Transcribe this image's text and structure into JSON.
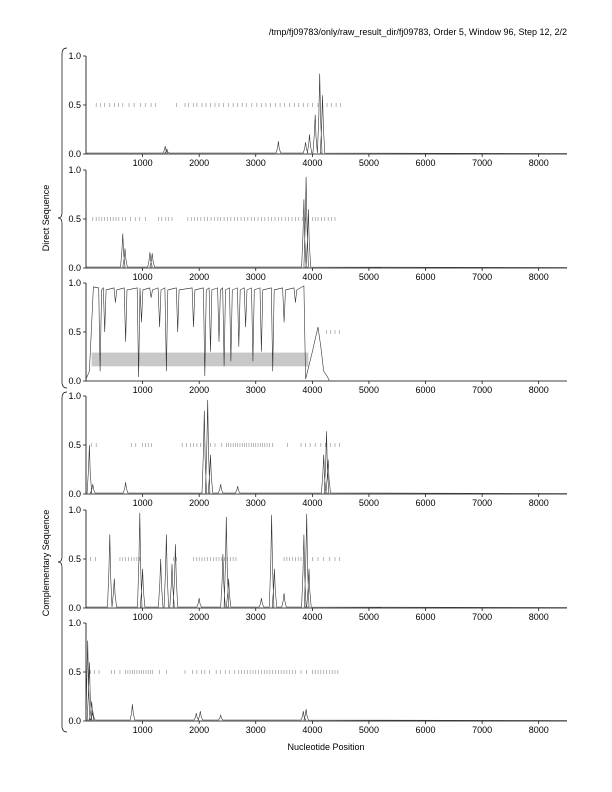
{
  "header": "/tmp/fj09783/only/raw_result_dir/fj09783, Order 5, Window 96, Step 12, 2/2",
  "groups": {
    "direct": "Direct Sequence",
    "complementary": "Complementary Sequence"
  },
  "chart_data": {
    "type": "line",
    "xlabel": "Nucleotide Position",
    "xlim": [
      0,
      8500
    ],
    "ylim": [
      0,
      1
    ],
    "xticks": [
      1000,
      2000,
      3000,
      4000,
      5000,
      6000,
      7000,
      8000
    ],
    "yticks": [
      "0.0",
      "0.5",
      "1.0"
    ],
    "panels": [
      {
        "group": "direct",
        "peaks": [
          [
            1400,
            0.08
          ],
          [
            1430,
            0.05
          ],
          [
            3400,
            0.13
          ],
          [
            3880,
            0.12
          ],
          [
            3950,
            0.2
          ],
          [
            4050,
            0.4
          ],
          [
            4130,
            0.82
          ],
          [
            4180,
            0.6
          ]
        ],
        "ticks": [
          180,
          260,
          330,
          420,
          500,
          570,
          650,
          760,
          850,
          960,
          1050,
          1150,
          1230,
          1600,
          1750,
          1810,
          1900,
          1960,
          2050,
          2120,
          2200,
          2280,
          2350,
          2430,
          2520,
          2600,
          2680,
          2760,
          2840,
          2930,
          3020,
          3100,
          3180,
          3260,
          3350,
          3430,
          3510,
          3600,
          3680,
          3760,
          3840,
          3920,
          4000,
          4100,
          4180,
          4260,
          4340,
          4420,
          4500
        ]
      },
      {
        "group": "direct",
        "peaks": [
          [
            650,
            0.35
          ],
          [
            690,
            0.2
          ],
          [
            1130,
            0.16
          ],
          [
            1170,
            0.15
          ],
          [
            3850,
            0.7
          ],
          [
            3890,
            0.93
          ],
          [
            3930,
            0.6
          ]
        ],
        "ticks": [
          120,
          180,
          230,
          280,
          330,
          380,
          430,
          480,
          530,
          580,
          650,
          700,
          790,
          870,
          950,
          1050,
          1280,
          1340,
          1410,
          1460,
          1520,
          1800,
          1860,
          1920,
          1970,
          2030,
          2090,
          2150,
          2210,
          2270,
          2330,
          2380,
          2440,
          2500,
          2560,
          2620,
          2680,
          2740,
          2800,
          2860,
          2920,
          2980,
          3040,
          3100,
          3160,
          3220,
          3280,
          3340,
          3400,
          3460,
          3520,
          3580,
          3640,
          3700,
          3760,
          3820,
          3880,
          4000,
          4050,
          4100,
          4160,
          4220,
          4280,
          4340,
          4400
        ]
      },
      {
        "group": "direct",
        "upper": [
          [
            130,
            0.96
          ],
          [
            3850,
            0.97
          ]
        ],
        "dips": [
          [
            250,
            0.1
          ],
          [
            330,
            0.5
          ],
          [
            520,
            0.8
          ],
          [
            700,
            0.4
          ],
          [
            930,
            0.04
          ],
          [
            980,
            0.6
          ],
          [
            1150,
            0.85
          ],
          [
            1300,
            0.55
          ],
          [
            1420,
            0.1
          ],
          [
            1620,
            0.5
          ],
          [
            1900,
            0.55
          ],
          [
            2100,
            0.05
          ],
          [
            2200,
            0.3
          ],
          [
            2350,
            0.4
          ],
          [
            2440,
            0.15
          ],
          [
            2560,
            0.2
          ],
          [
            2700,
            0.35
          ],
          [
            2820,
            0.55
          ],
          [
            2950,
            0.2
          ],
          [
            3100,
            0.3
          ],
          [
            3300,
            0.1
          ],
          [
            3500,
            0.6
          ],
          [
            3700,
            0.8
          ]
        ],
        "tail": [
          [
            4000,
            0.3
          ],
          [
            4060,
            0.45
          ],
          [
            4100,
            0.55
          ],
          [
            4150,
            0.35
          ],
          [
            4200,
            0.1
          ],
          [
            4260,
            0.05
          ]
        ],
        "band": [
          0.15,
          0.29
        ],
        "band_x": [
          100,
          3930
        ],
        "ticks": [
          4250,
          4320,
          4400,
          4480
        ]
      },
      {
        "group": "complementary",
        "peaks": [
          [
            60,
            0.5
          ],
          [
            120,
            0.1
          ],
          [
            700,
            0.12
          ],
          [
            2090,
            0.85
          ],
          [
            2150,
            0.96
          ],
          [
            2200,
            0.4
          ],
          [
            2380,
            0.1
          ],
          [
            2680,
            0.08
          ],
          [
            4200,
            0.4
          ],
          [
            4250,
            0.64
          ],
          [
            4280,
            0.35
          ]
        ],
        "ticks": [
          100,
          180,
          800,
          880,
          1000,
          1050,
          1100,
          1160,
          1700,
          1780,
          1850,
          1900,
          1960,
          2020,
          2100,
          2200,
          2280,
          2400,
          2480,
          2520,
          2560,
          2600,
          2640,
          2680,
          2720,
          2760,
          2800,
          2840,
          2880,
          2920,
          2960,
          3000,
          3040,
          3080,
          3120,
          3160,
          3200,
          3240,
          3300,
          3560,
          3800,
          3880,
          3960,
          4050,
          4150,
          4230,
          4320,
          4400,
          4480
        ]
      },
      {
        "group": "complementary",
        "peaks": [
          [
            420,
            0.75
          ],
          [
            500,
            0.3
          ],
          [
            950,
            0.97
          ],
          [
            1000,
            0.4
          ],
          [
            1320,
            0.5
          ],
          [
            1420,
            0.75
          ],
          [
            1520,
            0.45
          ],
          [
            1580,
            0.65
          ],
          [
            2000,
            0.1
          ],
          [
            2420,
            0.55
          ],
          [
            2480,
            0.93
          ],
          [
            2520,
            0.3
          ],
          [
            3100,
            0.1
          ],
          [
            3280,
            0.95
          ],
          [
            3330,
            0.4
          ],
          [
            3500,
            0.15
          ],
          [
            3850,
            0.75
          ],
          [
            3900,
            0.96
          ],
          [
            3940,
            0.4
          ]
        ],
        "ticks": [
          80,
          170,
          600,
          650,
          700,
          750,
          800,
          850,
          900,
          950,
          1550,
          1600,
          1900,
          1950,
          2000,
          2050,
          2100,
          2150,
          2200,
          2250,
          2300,
          2350,
          2400,
          2450,
          2500,
          2550,
          2600,
          2650,
          3500,
          3550,
          3600,
          3650,
          3700,
          3750,
          3800,
          4000,
          4100,
          4200,
          4300,
          4400,
          4480
        ]
      },
      {
        "group": "complementary",
        "peaks": [
          [
            30,
            0.82
          ],
          [
            60,
            0.6
          ],
          [
            100,
            0.2
          ],
          [
            120,
            0.1
          ],
          [
            820,
            0.17
          ],
          [
            1950,
            0.08
          ],
          [
            2020,
            0.1
          ],
          [
            2380,
            0.06
          ],
          [
            3840,
            0.1
          ],
          [
            3890,
            0.12
          ]
        ],
        "ticks": [
          80,
          150,
          230,
          450,
          500,
          600,
          700,
          740,
          780,
          820,
          860,
          900,
          940,
          980,
          1020,
          1060,
          1100,
          1140,
          1180,
          1300,
          1420,
          1750,
          1880,
          1960,
          2040,
          2100,
          2180,
          2300,
          2380,
          2460,
          2540,
          2620,
          2700,
          2750,
          2800,
          2850,
          2900,
          2950,
          3000,
          3050,
          3100,
          3150,
          3200,
          3250,
          3300,
          3350,
          3400,
          3450,
          3500,
          3550,
          3600,
          3650,
          3700,
          3800,
          3900,
          4000,
          4050,
          4100,
          4150,
          4200,
          4250,
          4300,
          4350,
          4400,
          4450
        ]
      }
    ]
  }
}
